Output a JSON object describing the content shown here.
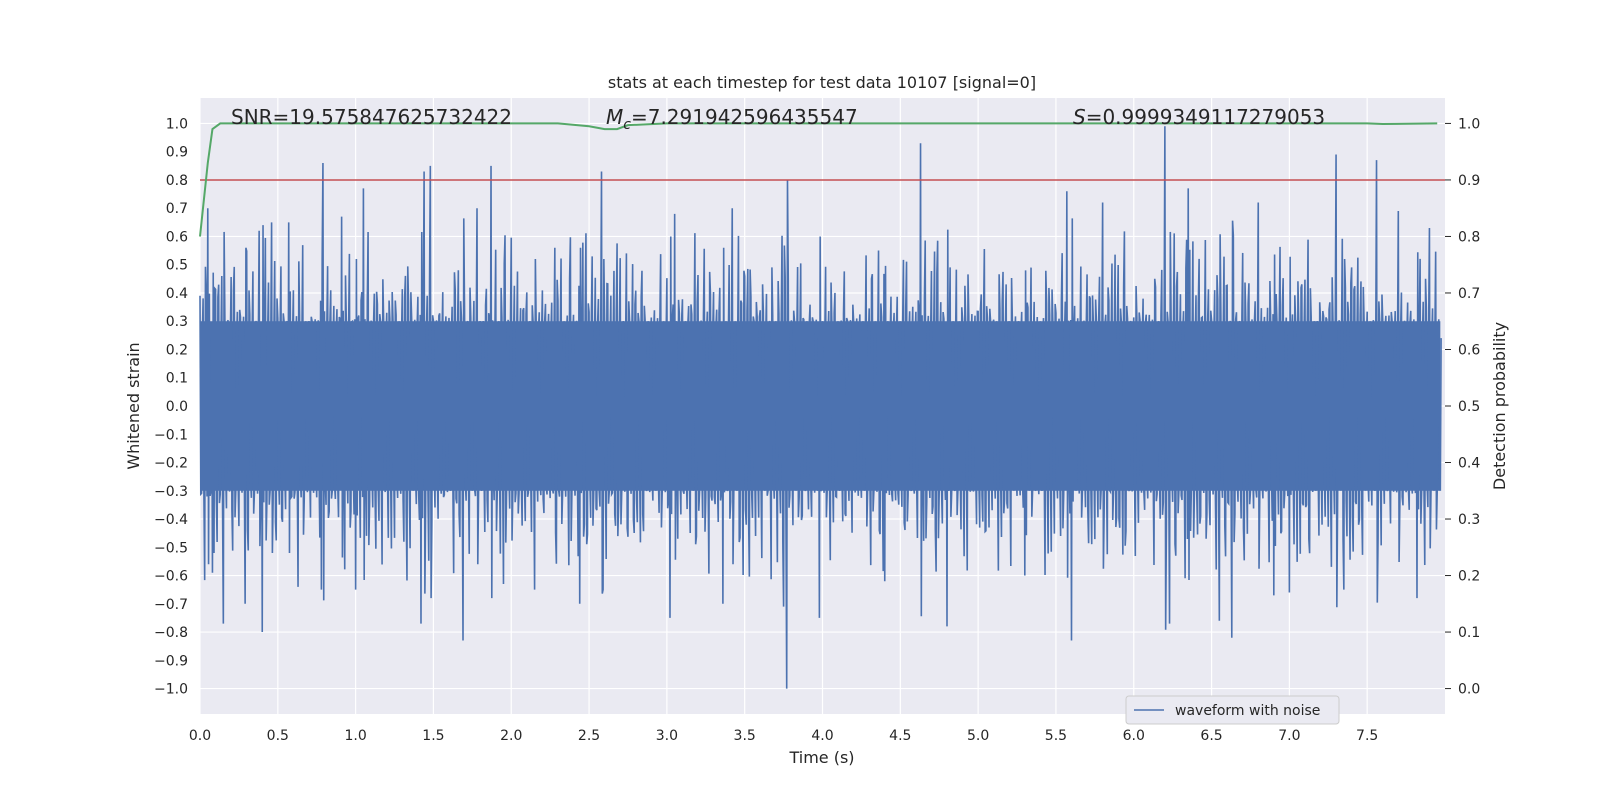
{
  "chart_data": {
    "type": "line",
    "title": "stats at each timestep for test data 10107 [signal=0]",
    "xlabel": "Time (s)",
    "ylabel": "Whitened strain",
    "y2label": "Detection probability",
    "xlim": [
      0.0,
      8.0
    ],
    "ylim": [
      -1.09,
      1.09
    ],
    "y2lim": [
      -0.045,
      1.045
    ],
    "xticks": [
      "0.0",
      "0.5",
      "1.0",
      "1.5",
      "2.0",
      "2.5",
      "3.0",
      "3.5",
      "4.0",
      "4.5",
      "5.0",
      "5.5",
      "6.0",
      "6.5",
      "7.0",
      "7.5"
    ],
    "yticks": [
      "1.0",
      "0.9",
      "0.8",
      "0.7",
      "0.6",
      "0.5",
      "0.4",
      "0.3",
      "0.2",
      "0.1",
      "0.0",
      "−0.1",
      "−0.2",
      "−0.3",
      "−0.4",
      "−0.5",
      "−0.6",
      "−0.7",
      "−0.8",
      "−0.9",
      "−1.0"
    ],
    "y2ticks": [
      "1.0",
      "0.9",
      "0.8",
      "0.7",
      "0.6",
      "0.5",
      "0.4",
      "0.3",
      "0.2",
      "0.1",
      "0.0"
    ],
    "annotations": {
      "snr": "SNR=19.575847625732422",
      "mc_symbol": "M",
      "mc_subscript": "c",
      "mc_value": "=7.291942596435547",
      "s_symbol": "S",
      "s_value": "=0.9999349117279053"
    },
    "legend": {
      "label": "waveform with noise",
      "position": "lower right"
    },
    "threshold": {
      "y2": 0.9,
      "color": "#c44e52"
    },
    "series": [
      {
        "name": "waveform with noise",
        "axis": "left",
        "color": "#4c72b0",
        "noise_envelope_approx": 0.3,
        "spikes_up": [
          [
            0.05,
            0.7
          ],
          [
            0.38,
            0.62
          ],
          [
            0.46,
            0.65
          ],
          [
            0.57,
            0.65
          ],
          [
            0.79,
            0.86
          ],
          [
            0.91,
            0.67
          ],
          [
            1.0,
            0.79
          ],
          [
            1.05,
            0.77
          ],
          [
            1.44,
            0.83
          ],
          [
            1.48,
            0.85
          ],
          [
            1.78,
            0.7
          ],
          [
            1.87,
            0.85
          ],
          [
            2.58,
            0.83
          ],
          [
            3.05,
            0.68
          ],
          [
            3.42,
            0.7
          ],
          [
            3.77,
            0.85
          ],
          [
            4.63,
            0.93
          ],
          [
            5.57,
            0.76
          ],
          [
            5.8,
            0.72
          ],
          [
            6.2,
            0.99
          ],
          [
            6.35,
            0.77
          ],
          [
            6.8,
            0.72
          ],
          [
            7.3,
            0.89
          ],
          [
            7.56,
            0.87
          ],
          [
            7.7,
            0.69
          ],
          [
            7.9,
            0.63
          ]
        ],
        "spikes_down": [
          [
            0.08,
            -0.59
          ],
          [
            0.15,
            -0.77
          ],
          [
            0.29,
            -0.7
          ],
          [
            0.4,
            -0.8
          ],
          [
            0.63,
            -0.64
          ],
          [
            0.78,
            -0.65
          ],
          [
            1.0,
            -0.65
          ],
          [
            1.42,
            -0.77
          ],
          [
            1.69,
            -0.83
          ],
          [
            1.95,
            -0.63
          ],
          [
            2.15,
            -0.65
          ],
          [
            2.44,
            -0.7
          ],
          [
            2.59,
            -0.65
          ],
          [
            3.02,
            -0.75
          ],
          [
            3.36,
            -0.7
          ],
          [
            3.75,
            -0.71
          ],
          [
            3.77,
            -1.0
          ],
          [
            3.98,
            -0.75
          ],
          [
            4.4,
            -0.62
          ],
          [
            4.8,
            -0.78
          ],
          [
            5.3,
            -0.6
          ],
          [
            5.6,
            -0.83
          ],
          [
            6.23,
            -0.77
          ],
          [
            6.55,
            -0.76
          ],
          [
            6.63,
            -0.82
          ],
          [
            6.9,
            -0.67
          ],
          [
            7.0,
            -0.66
          ],
          [
            7.35,
            -0.65
          ],
          [
            7.82,
            -0.68
          ]
        ]
      },
      {
        "name": "detection probability",
        "axis": "right",
        "color": "#55a868",
        "x": [
          0.0,
          0.05,
          0.08,
          0.13,
          0.5,
          1.0,
          2.0,
          2.3,
          2.5,
          2.6,
          2.68,
          2.75,
          3.0,
          4.0,
          5.0,
          6.0,
          7.0,
          7.5,
          7.6,
          7.95
        ],
        "y": [
          0.8,
          0.93,
          0.99,
          1.0,
          1.0,
          1.0,
          1.0,
          1.0,
          0.995,
          0.99,
          0.99,
          0.997,
          1.0,
          1.0,
          1.0,
          1.0,
          1.0,
          1.0,
          0.999,
          1.0
        ]
      }
    ]
  }
}
